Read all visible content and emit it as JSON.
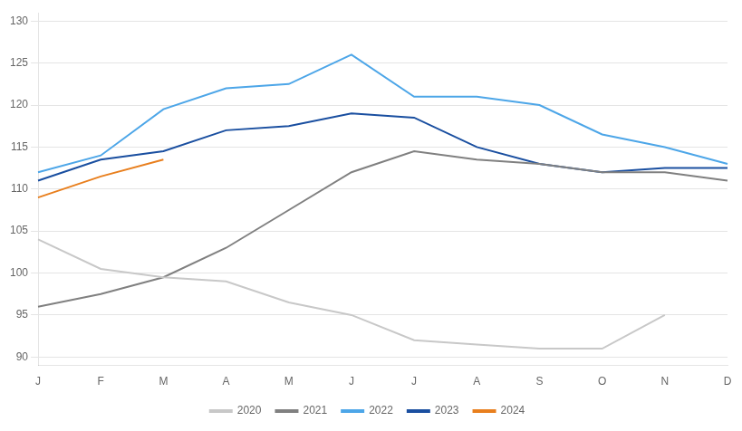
{
  "chart_data": {
    "type": "line",
    "categories": [
      "J",
      "F",
      "M",
      "A",
      "M",
      "J",
      "J",
      "A",
      "S",
      "O",
      "N",
      "D"
    ],
    "series": [
      {
        "name": "2020",
        "color": "#c8c8c8",
        "values": [
          104.0,
          100.5,
          99.5,
          99.0,
          96.5,
          95.0,
          92.0,
          91.5,
          91.0,
          91.0,
          95.0,
          null
        ]
      },
      {
        "name": "2021",
        "color": "#808080",
        "values": [
          96.0,
          97.5,
          99.5,
          103.0,
          107.5,
          112.0,
          114.5,
          113.5,
          113.0,
          112.0,
          112.0,
          111.0
        ]
      },
      {
        "name": "2022",
        "color": "#4da6e8",
        "values": [
          112.0,
          114.0,
          119.5,
          122.0,
          122.5,
          126.0,
          121.0,
          121.0,
          120.0,
          116.5,
          115.0,
          113.0
        ]
      },
      {
        "name": "2023",
        "color": "#1a4fa0",
        "values": [
          111.0,
          113.5,
          114.5,
          117.0,
          117.5,
          119.0,
          118.5,
          115.0,
          113.0,
          112.0,
          112.5,
          112.5
        ]
      },
      {
        "name": "2024",
        "color": "#e87f1e",
        "values": [
          109.0,
          111.5,
          113.5,
          null,
          null,
          null,
          null,
          null,
          null,
          null,
          null,
          null
        ]
      }
    ],
    "ylim": [
      89,
      131
    ],
    "yticks": [
      90,
      95,
      100,
      105,
      110,
      115,
      120,
      125,
      130
    ],
    "grid": true,
    "legend": "bottom"
  }
}
